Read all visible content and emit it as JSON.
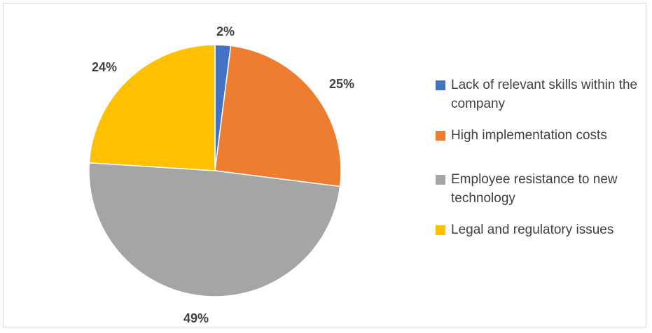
{
  "chart_data": {
    "type": "pie",
    "title": "",
    "categories": [
      "Lack of relevant skills within the company",
      "High implementation costs",
      "Employee resistance to new technology",
      "Legal and regulatory issues"
    ],
    "values": [
      2,
      25,
      49,
      24
    ],
    "data_labels": [
      "2%",
      "25%",
      "49%",
      "24%"
    ],
    "colors": [
      "#4472c4",
      "#ed7d31",
      "#a5a5a5",
      "#ffc000"
    ],
    "legend_position": "right",
    "start_angle_deg": 0,
    "direction": "clockwise"
  }
}
